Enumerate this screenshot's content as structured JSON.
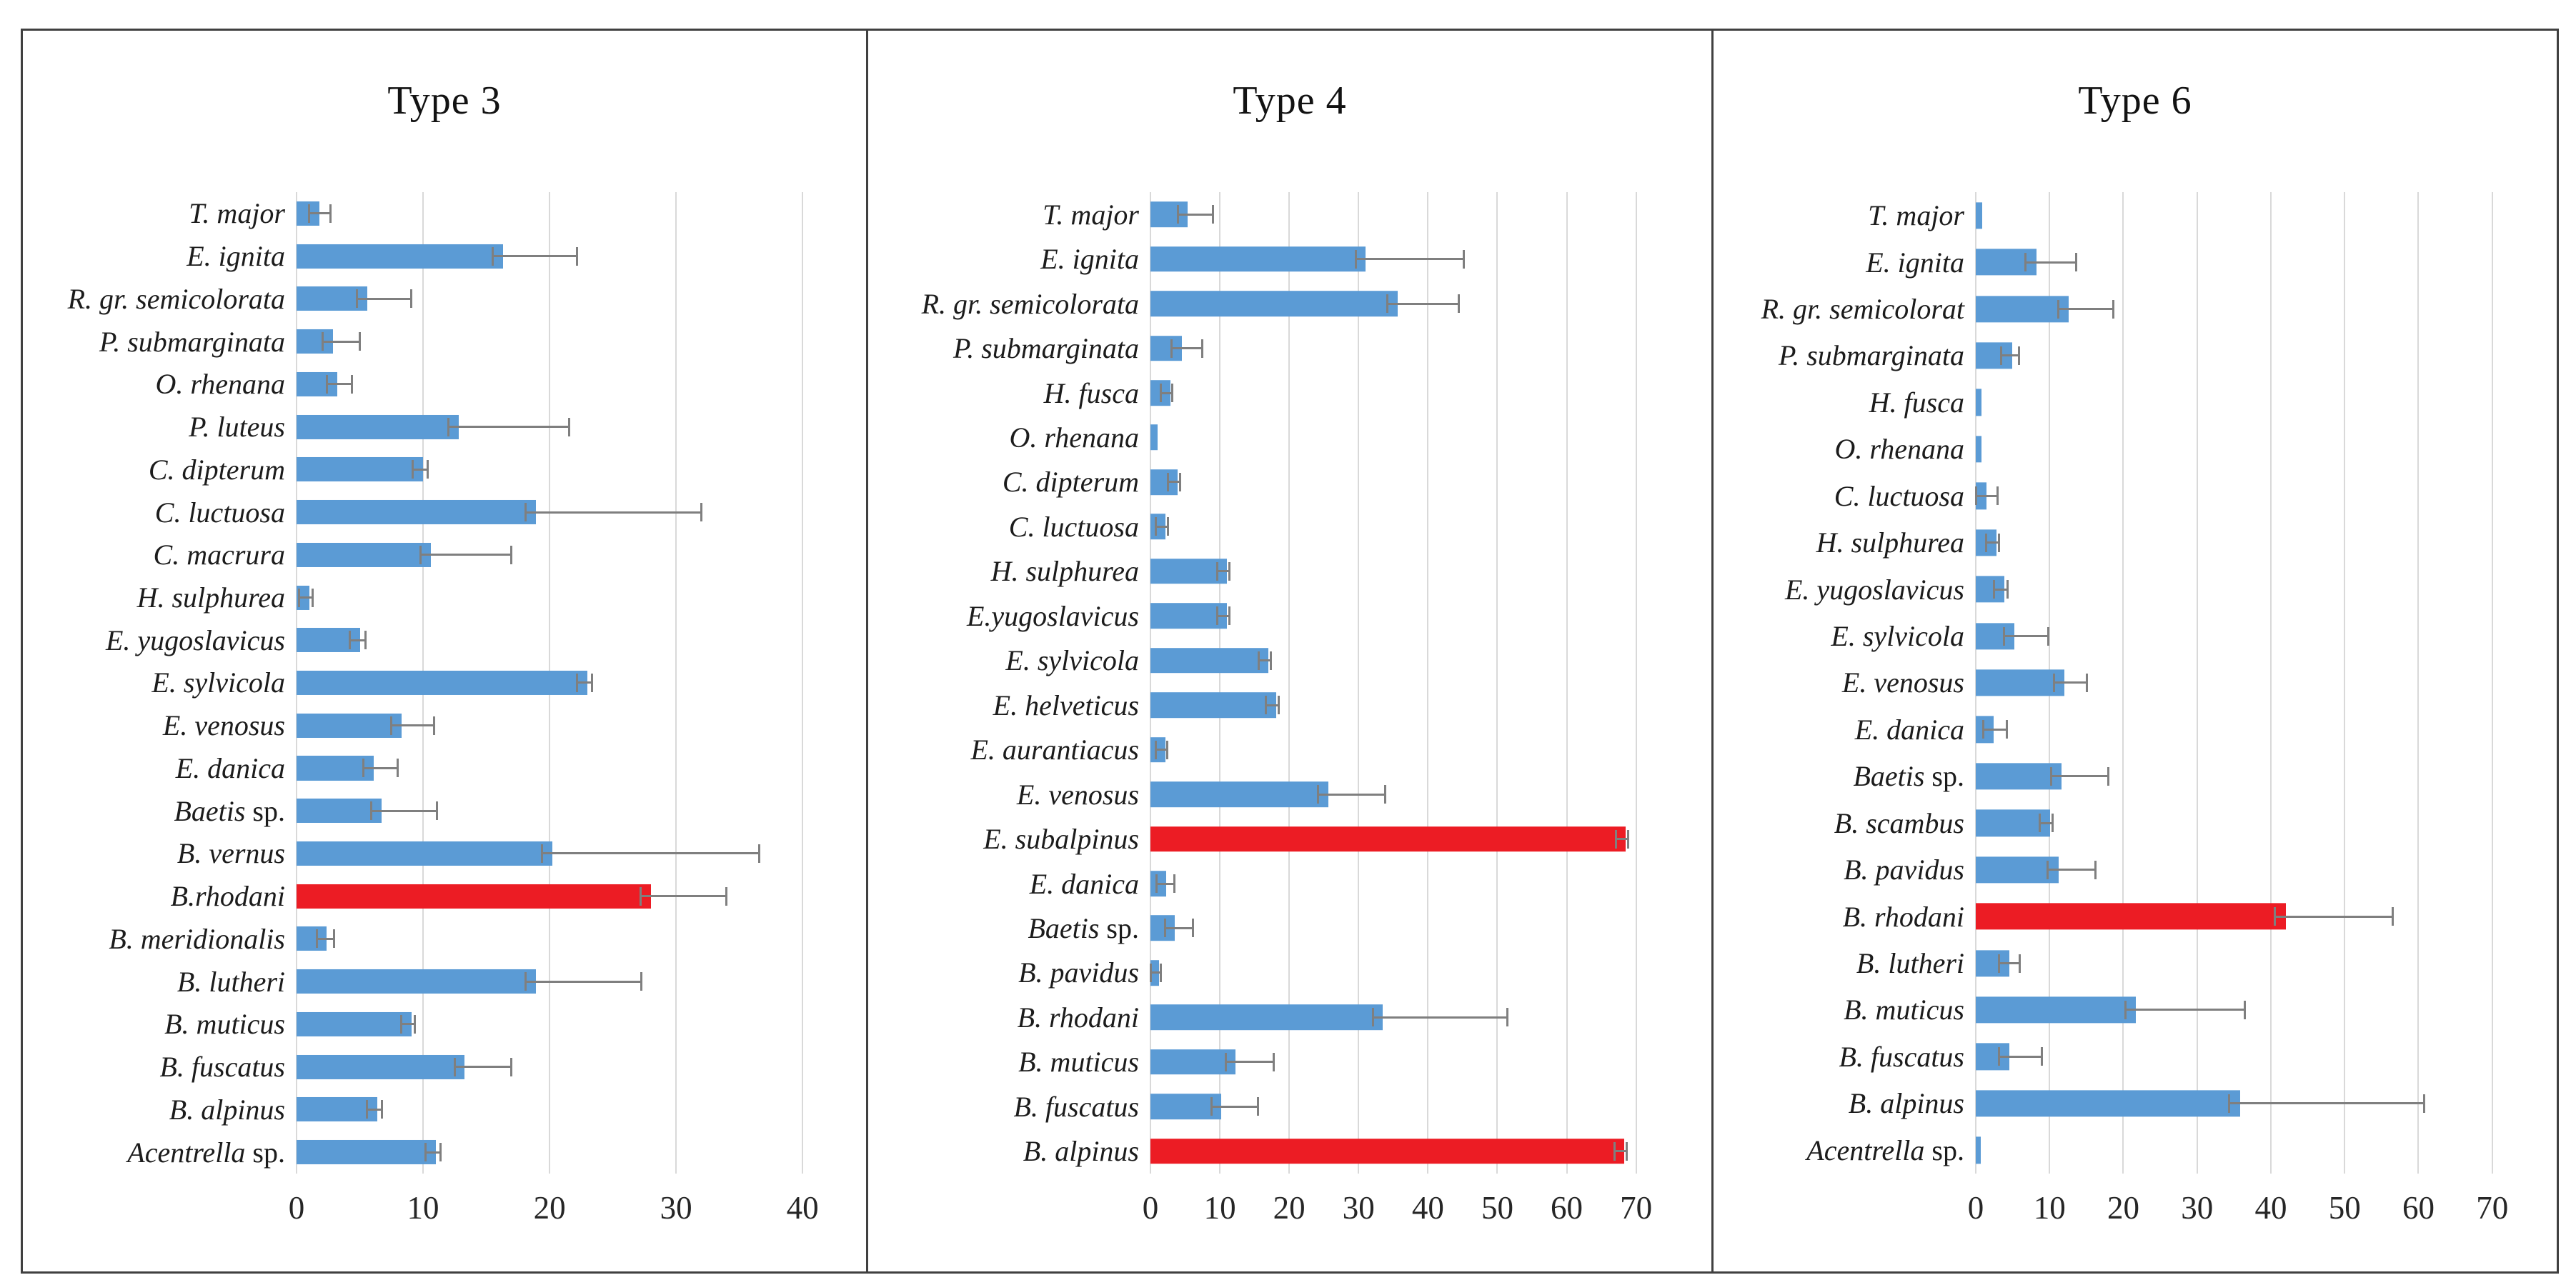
{
  "figure": {
    "bar_color": "#5B9BD5",
    "highlight_color": "#EC1C24",
    "error_bar_color": "#7F7F7F",
    "gridline_color": "#D9D9D9",
    "border_color": "#404040",
    "text_color": "#1C1C1C"
  },
  "chart_data": [
    {
      "type": "bar",
      "orientation": "horizontal",
      "title": "Type 3",
      "xlim": [
        0,
        40
      ],
      "plot_max": 44,
      "xticks": [
        0,
        10,
        20,
        30,
        40
      ],
      "grid": "vertical",
      "legend": "none",
      "bars": [
        {
          "label": "T. major",
          "value": 1.8,
          "error": 0.9,
          "highlight": false
        },
        {
          "label": "E. ignita",
          "value": 16.3,
          "error": 5.9,
          "highlight": false
        },
        {
          "label": "R. gr. semicolorata",
          "value": 5.6,
          "error": 3.5,
          "highlight": false
        },
        {
          "label": "P. submarginata",
          "value": 2.9,
          "error": 2.1,
          "highlight": false
        },
        {
          "label": "O. rhenana",
          "value": 3.2,
          "error": 1.2,
          "highlight": false
        },
        {
          "label": "P. luteus",
          "value": 12.8,
          "error": 8.8,
          "highlight": false
        },
        {
          "label": "C. dipterum",
          "value": 10.0,
          "error": 0.4,
          "highlight": false
        },
        {
          "label": "C. luctuosa",
          "value": 18.9,
          "error": 13.1,
          "highlight": false
        },
        {
          "label": "C. macrura",
          "value": 10.6,
          "error": 6.4,
          "highlight": false
        },
        {
          "label": "H. sulphurea",
          "value": 1.0,
          "error": 0.3,
          "highlight": false
        },
        {
          "label": "E. yugoslavicus",
          "value": 5.0,
          "error": 0.5,
          "highlight": false
        },
        {
          "label": "E. sylvicola",
          "value": 23.0,
          "error": 0.4,
          "highlight": false
        },
        {
          "label": "E. venosus",
          "value": 8.3,
          "error": 2.6,
          "highlight": false
        },
        {
          "label": "E. danica",
          "value": 6.1,
          "error": 1.9,
          "highlight": false
        },
        {
          "label": "Baetis sp.",
          "value": 6.7,
          "error": 4.4,
          "highlight": false
        },
        {
          "label": "B. vernus",
          "value": 20.2,
          "error": 16.4,
          "highlight": false
        },
        {
          "label": "B.rhodani",
          "value": 28.0,
          "error": 6.0,
          "highlight": true
        },
        {
          "label": "B. meridionalis",
          "value": 2.4,
          "error": 0.6,
          "highlight": false
        },
        {
          "label": "B. lutheri",
          "value": 18.9,
          "error": 8.4,
          "highlight": false
        },
        {
          "label": "B. muticus",
          "value": 9.1,
          "error": 0.3,
          "highlight": false
        },
        {
          "label": "B. fuscatus",
          "value": 13.3,
          "error": 3.7,
          "highlight": false
        },
        {
          "label": "B. alpinus",
          "value": 6.4,
          "error": 0.4,
          "highlight": false
        },
        {
          "label": "Acentrella sp.",
          "value": 11.0,
          "error": 0.4,
          "highlight": false
        }
      ]
    },
    {
      "type": "bar",
      "orientation": "horizontal",
      "title": "Type 4",
      "xlim": [
        0,
        70
      ],
      "plot_max": 79,
      "xticks": [
        0,
        10,
        20,
        30,
        40,
        50,
        60,
        70
      ],
      "grid": "vertical",
      "legend": "none",
      "bars": [
        {
          "label": "T. major",
          "value": 5.4,
          "error": 3.7,
          "highlight": false
        },
        {
          "label": "E. ignita",
          "value": 31.0,
          "error": 14.2,
          "highlight": false
        },
        {
          "label": "R. gr. semicolorata",
          "value": 35.6,
          "error": 8.9,
          "highlight": false
        },
        {
          "label": "P. submarginata",
          "value": 4.5,
          "error": 3.0,
          "highlight": false
        },
        {
          "label": "H. fusca",
          "value": 2.9,
          "error": 0.3,
          "highlight": false
        },
        {
          "label": "O. rhenana",
          "value": 1.0,
          "error": 0,
          "highlight": false
        },
        {
          "label": "C. dipterum",
          "value": 3.9,
          "error": 0.4,
          "highlight": false
        },
        {
          "label": "C. luctuosa",
          "value": 2.2,
          "error": 0.4,
          "highlight": false
        },
        {
          "label": "H. sulphurea",
          "value": 11.0,
          "error": 0.4,
          "highlight": false
        },
        {
          "label": "E.yugoslavicus",
          "value": 11.0,
          "error": 0.4,
          "highlight": false
        },
        {
          "label": "E. sylvicola",
          "value": 17.0,
          "error": 0.4,
          "highlight": false
        },
        {
          "label": "E. helveticus",
          "value": 18.1,
          "error": 0.4,
          "highlight": false
        },
        {
          "label": "E. aurantiacus",
          "value": 2.2,
          "error": 0.3,
          "highlight": false
        },
        {
          "label": "E. venosus",
          "value": 25.6,
          "error": 8.3,
          "highlight": false
        },
        {
          "label": "E. subalpinus",
          "value": 68.5,
          "error": 0.4,
          "highlight": true
        },
        {
          "label": "E. danica",
          "value": 2.3,
          "error": 1.2,
          "highlight": false
        },
        {
          "label": "Baetis sp.",
          "value": 3.5,
          "error": 2.7,
          "highlight": false
        },
        {
          "label": "B. pavidus",
          "value": 1.2,
          "error": 0.3,
          "highlight": false
        },
        {
          "label": "B. rhodani",
          "value": 33.5,
          "error": 18.0,
          "highlight": false
        },
        {
          "label": "B. muticus",
          "value": 12.3,
          "error": 5.5,
          "highlight": false
        },
        {
          "label": "B. fuscatus",
          "value": 10.2,
          "error": 5.4,
          "highlight": false
        },
        {
          "label": "B. alpinus",
          "value": 68.3,
          "error": 0.4,
          "highlight": true
        }
      ]
    },
    {
      "type": "bar",
      "orientation": "horizontal",
      "title": "Type 6",
      "xlim": [
        0,
        70
      ],
      "plot_max": 77,
      "xticks": [
        0,
        10,
        20,
        30,
        40,
        50,
        60,
        70
      ],
      "grid": "vertical",
      "legend": "none",
      "bars": [
        {
          "label": "T. major",
          "value": 0.9,
          "error": 0,
          "highlight": false
        },
        {
          "label": "E. ignita",
          "value": 8.2,
          "error": 5.5,
          "highlight": false
        },
        {
          "label": "R. gr. semicolorat",
          "value": 12.6,
          "error": 6.1,
          "highlight": false
        },
        {
          "label": "P. submarginata",
          "value": 4.9,
          "error": 1.0,
          "highlight": false
        },
        {
          "label": "H. fusca",
          "value": 0.8,
          "error": 0,
          "highlight": false
        },
        {
          "label": "O. rhenana",
          "value": 0.8,
          "error": 0,
          "highlight": false
        },
        {
          "label": "C. luctuosa",
          "value": 1.5,
          "error": 1.5,
          "highlight": false
        },
        {
          "label": "H. sulphurea",
          "value": 2.8,
          "error": 0.4,
          "highlight": false
        },
        {
          "label": "E. yugoslavicus",
          "value": 3.9,
          "error": 0.5,
          "highlight": false
        },
        {
          "label": "E. sylvicola",
          "value": 5.2,
          "error": 4.7,
          "highlight": false
        },
        {
          "label": "E. venosus",
          "value": 12.0,
          "error": 3.1,
          "highlight": false
        },
        {
          "label": "E. danica",
          "value": 2.4,
          "error": 1.9,
          "highlight": false
        },
        {
          "label": "Baetis sp.",
          "value": 11.6,
          "error": 6.4,
          "highlight": false
        },
        {
          "label": "B. scambus",
          "value": 10.1,
          "error": 0.4,
          "highlight": false
        },
        {
          "label": "B. pavidus",
          "value": 11.2,
          "error": 5.1,
          "highlight": false
        },
        {
          "label": "B. rhodani",
          "value": 42.0,
          "error": 14.6,
          "highlight": true
        },
        {
          "label": "B. lutheri",
          "value": 4.6,
          "error": 1.4,
          "highlight": false
        },
        {
          "label": "B. muticus",
          "value": 21.7,
          "error": 14.8,
          "highlight": false
        },
        {
          "label": "B. fuscatus",
          "value": 4.6,
          "error": 4.4,
          "highlight": false
        },
        {
          "label": "B. alpinus",
          "value": 35.8,
          "error": 25.0,
          "highlight": false
        },
        {
          "label": "Acentrella sp.",
          "value": 0.7,
          "error": 0,
          "highlight": false
        }
      ]
    }
  ]
}
